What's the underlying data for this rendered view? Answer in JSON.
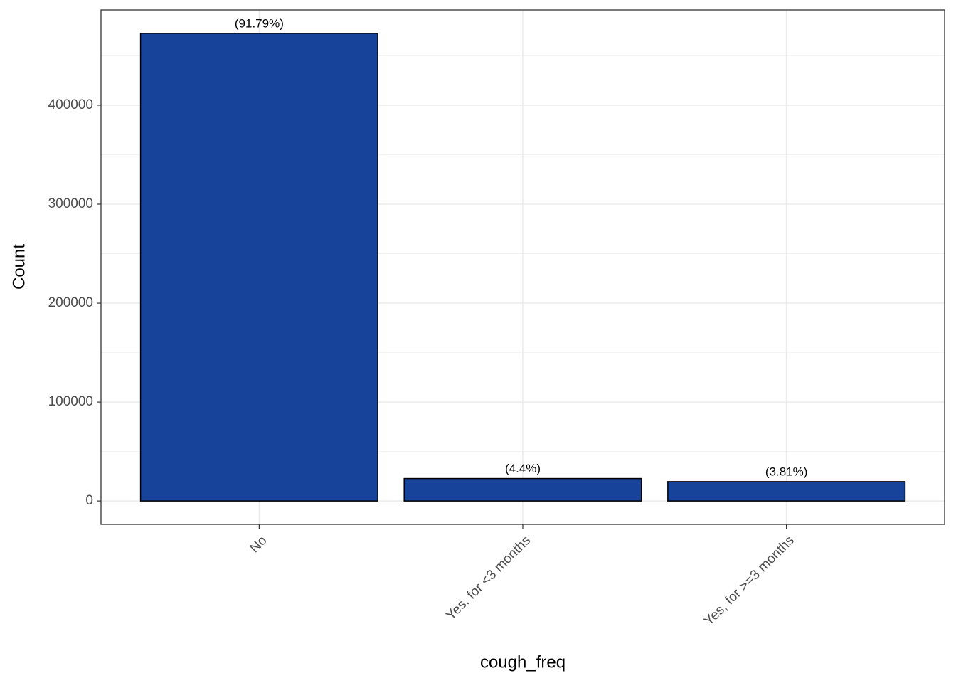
{
  "chart_data": {
    "type": "bar",
    "x_label": "cough_freq",
    "y_label": "Count",
    "categories": [
      "No",
      "Yes, for <3 months",
      "Yes, for >=3 months"
    ],
    "values": [
      472700,
      22700,
      19600
    ],
    "bar_labels": [
      "(91.79%)",
      "(4.4%)",
      "(3.81%)"
    ],
    "color": "#18439a",
    "edge_color": "#000000",
    "ylim": [
      -23635,
      496335
    ],
    "yticks": [
      0,
      100000,
      200000,
      300000,
      400000
    ],
    "y_minor_ticks": [
      50000,
      150000,
      250000,
      350000,
      450000
    ],
    "grid": true
  }
}
